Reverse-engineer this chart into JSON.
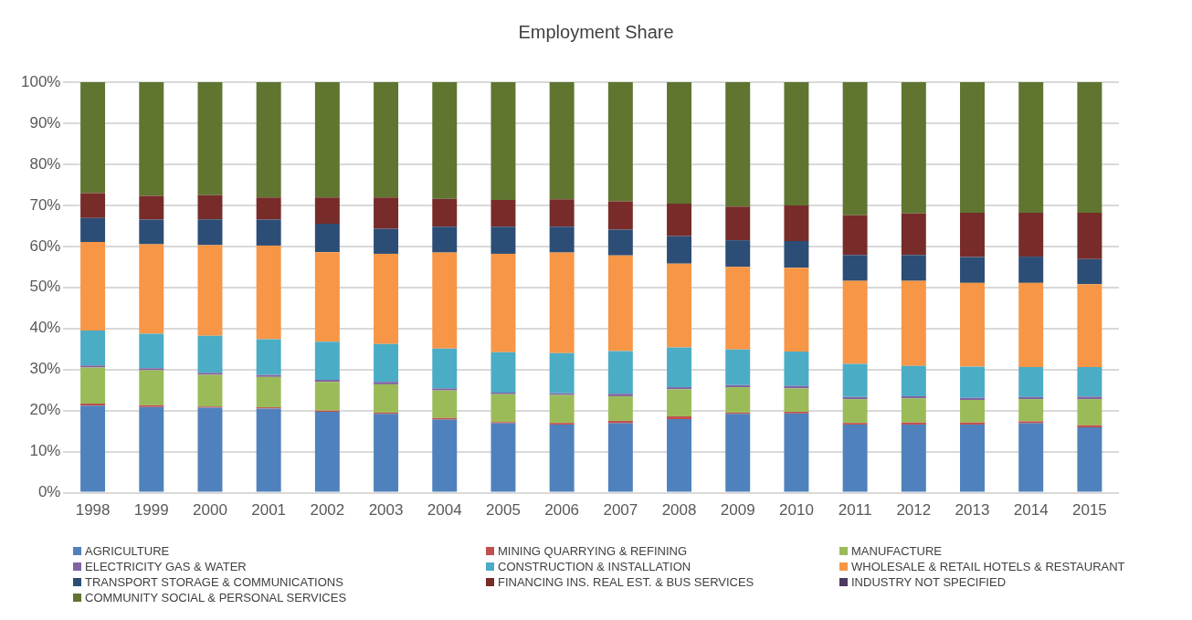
{
  "chart_data": {
    "type": "bar",
    "title": "Employment Share",
    "stacked": true,
    "grid": "y",
    "legend": "bottom",
    "categories": [
      "1998",
      "1999",
      "2000",
      "2001",
      "2002",
      "2003",
      "2004",
      "2005",
      "2006",
      "2007",
      "2008",
      "2009",
      "2010",
      "2011",
      "2012",
      "2013",
      "2014",
      "2015"
    ],
    "ylim": [
      0,
      100
    ],
    "yticks": [
      {
        "value": 0,
        "label": "0%"
      },
      {
        "value": 10,
        "label": "10%"
      },
      {
        "value": 20,
        "label": "20%"
      },
      {
        "value": 30,
        "label": "30%"
      },
      {
        "value": 40,
        "label": "40%"
      },
      {
        "value": 50,
        "label": "50%"
      },
      {
        "value": 60,
        "label": "60%"
      },
      {
        "value": 70,
        "label": "70%"
      },
      {
        "value": 80,
        "label": "80%"
      },
      {
        "value": 90,
        "label": "90%"
      },
      {
        "value": 100,
        "label": "100%"
      }
    ],
    "series": [
      {
        "name": "AGRICULTURE",
        "color": "#4f81bd",
        "values": [
          21.2,
          20.9,
          20.7,
          20.5,
          19.7,
          19.2,
          17.8,
          16.9,
          16.6,
          16.9,
          17.9,
          19.2,
          19.3,
          16.6,
          16.6,
          16.6,
          16.9,
          15.9
        ]
      },
      {
        "name": "MINING QUARRYING & REFINING",
        "color": "#c0504d",
        "values": [
          0.5,
          0.4,
          0.3,
          0.3,
          0.3,
          0.3,
          0.4,
          0.3,
          0.4,
          0.6,
          0.7,
          0.3,
          0.4,
          0.4,
          0.5,
          0.5,
          0.5,
          0.5
        ]
      },
      {
        "name": "MANUFACTURE",
        "color": "#9bbb59",
        "values": [
          8.8,
          8.5,
          7.7,
          7.4,
          7.0,
          6.9,
          6.7,
          6.8,
          6.8,
          6.0,
          6.6,
          6.2,
          5.7,
          5.8,
          5.9,
          5.5,
          5.4,
          6.4
        ]
      },
      {
        "name": "ELECTRICITY GAS & WATER",
        "color": "#8064a2",
        "values": [
          0.5,
          0.5,
          0.5,
          0.5,
          0.5,
          0.6,
          0.5,
          0.4,
          0.4,
          0.6,
          0.5,
          0.5,
          0.6,
          0.5,
          0.5,
          0.5,
          0.5,
          0.6
        ]
      },
      {
        "name": "CONSTRUCTION & INSTALLATION",
        "color": "#4bacc6",
        "values": [
          8.5,
          8.4,
          9.0,
          8.7,
          9.3,
          9.2,
          9.7,
          9.8,
          9.8,
          10.4,
          9.7,
          8.7,
          8.4,
          8.1,
          7.4,
          7.6,
          7.3,
          7.2
        ]
      },
      {
        "name": "WHOLESALE & RETAIL HOTELS & RESTAURANT",
        "color": "#f79646",
        "values": [
          21.6,
          21.8,
          22.1,
          22.8,
          21.8,
          22.0,
          23.4,
          24.0,
          24.5,
          23.3,
          20.4,
          20.1,
          20.4,
          20.2,
          20.7,
          20.4,
          20.5,
          20.2
        ]
      },
      {
        "name": "TRANSPORT STORAGE & COMMUNICATIONS",
        "color": "#2c4d75",
        "values": [
          5.8,
          6.0,
          6.3,
          6.3,
          6.9,
          6.1,
          6.3,
          6.6,
          6.3,
          6.3,
          6.7,
          6.5,
          6.5,
          6.3,
          6.3,
          6.3,
          6.4,
          6.1
        ]
      },
      {
        "name": "FINANCING INS. REAL EST. & BUS SERVICES",
        "color": "#772c2a",
        "values": [
          6.1,
          5.8,
          5.9,
          5.4,
          6.4,
          7.6,
          6.8,
          6.5,
          6.7,
          6.9,
          7.9,
          8.2,
          8.7,
          9.7,
          10.1,
          10.8,
          10.7,
          11.3
        ]
      },
      {
        "name": "INDUSTRY NOT SPECIFIED",
        "color": "#4d3b62",
        "values": [
          0,
          0,
          0,
          0,
          0,
          0,
          0,
          0,
          0,
          0,
          0,
          0,
          0,
          0,
          0,
          0,
          0,
          0
        ]
      },
      {
        "name": "COMMUNITY SOCIAL & PERSONAL SERVICES",
        "color": "#5f7530",
        "values": [
          27.0,
          27.7,
          27.5,
          28.1,
          28.1,
          28.1,
          28.4,
          28.7,
          28.5,
          29.0,
          29.6,
          30.3,
          30.0,
          32.4,
          32.0,
          31.8,
          31.8,
          31.8
        ]
      }
    ]
  }
}
